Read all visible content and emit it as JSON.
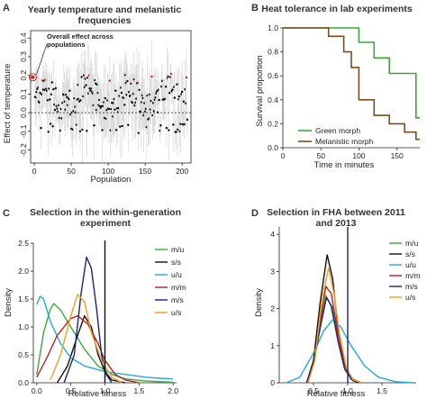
{
  "panels": {
    "A": {
      "label": "A",
      "title": [
        "Yearly temperature and melanistic",
        "frequencies"
      ]
    },
    "B": {
      "label": "B",
      "title": [
        "Heat tolerance in lab experiments"
      ]
    },
    "C": {
      "label": "C",
      "title": [
        "Selection in the within-generation",
        "experiment"
      ]
    },
    "D": {
      "label": "D",
      "title": [
        "Selection in FHA between 2011",
        "and 2013"
      ]
    }
  },
  "annotation": [
    "Overall effect across",
    "populations"
  ],
  "chart_data": [
    {
      "type": "scatter",
      "xlabel": "Population",
      "ylabel": "Effect of temperature",
      "xlim": [
        -5,
        212
      ],
      "ylim": [
        -0.27,
        0.44
      ],
      "xticks": [
        0,
        50,
        100,
        150,
        200
      ],
      "yticks": [
        -0.2,
        -0.1,
        0.0,
        0.1,
        0.2,
        0.3,
        0.4
      ],
      "yticklabels": [
        "-0.2",
        "-0.1",
        "0.0",
        "0.1",
        "0.2",
        "0.3",
        "0.4"
      ],
      "zero_line": 0,
      "overall_effect": {
        "x": -2,
        "y": 0.19
      },
      "colors": {
        "point": "#000000",
        "highlight": "#cc2222",
        "errorbar": "#d6d6d6"
      }
    },
    {
      "type": "line",
      "xlabel": "Time in minutes",
      "ylabel": "Survival proportion",
      "xlim": [
        0,
        180
      ],
      "ylim": [
        0,
        1
      ],
      "xticks": [
        0,
        50,
        100,
        150
      ],
      "yticks": [
        0.0,
        0.2,
        0.4,
        0.6,
        0.8,
        1.0
      ],
      "yticklabels": [
        "0.0",
        "0.2",
        "0.4",
        "0.6",
        "0.8",
        "1.0"
      ],
      "series": [
        {
          "name": "Green morph",
          "color": "#3aa83a",
          "steps": [
            [
              0,
              1.0
            ],
            [
              100,
              1.0
            ],
            [
              100,
              0.88
            ],
            [
              120,
              0.88
            ],
            [
              120,
              0.75
            ],
            [
              140,
              0.75
            ],
            [
              140,
              0.62
            ],
            [
              175,
              0.62
            ],
            [
              175,
              0.25
            ],
            [
              180,
              0.25
            ]
          ]
        },
        {
          "name": "Melanistic morph",
          "color": "#7a4e1a",
          "steps": [
            [
              0,
              1.0
            ],
            [
              60,
              1.0
            ],
            [
              60,
              0.93
            ],
            [
              80,
              0.93
            ],
            [
              80,
              0.8
            ],
            [
              90,
              0.8
            ],
            [
              90,
              0.67
            ],
            [
              100,
              0.67
            ],
            [
              100,
              0.4
            ],
            [
              120,
              0.4
            ],
            [
              120,
              0.27
            ],
            [
              140,
              0.27
            ],
            [
              140,
              0.2
            ],
            [
              160,
              0.2
            ],
            [
              160,
              0.13
            ],
            [
              175,
              0.13
            ],
            [
              175,
              0.07
            ],
            [
              180,
              0.07
            ]
          ]
        }
      ],
      "legend": "bottom-left"
    },
    {
      "type": "line",
      "xlabel": "Relative fitness",
      "ylabel": "Density",
      "xlim": [
        -0.05,
        2.05
      ],
      "ylim": [
        0,
        2.5
      ],
      "xticks": [
        0.0,
        0.5,
        1.0,
        1.5,
        2.0
      ],
      "xticklabels": [
        "0.0",
        "0.5",
        "1.0",
        "1.5",
        "2.0"
      ],
      "yticks": [
        0.0,
        0.5,
        1.0,
        1.5,
        2.0,
        2.5
      ],
      "yticklabels": [
        "0.0",
        "0.5",
        "1.0",
        "1.5",
        "2.0",
        "2.5"
      ],
      "vline": 1.0,
      "series": [
        {
          "name": "m/u",
          "color": "#3aaa3a",
          "points": [
            [
              0.0,
              0.15
            ],
            [
              0.1,
              0.9
            ],
            [
              0.2,
              1.32
            ],
            [
              0.25,
              1.42
            ],
            [
              0.35,
              1.3
            ],
            [
              0.5,
              1.0
            ],
            [
              0.7,
              0.6
            ],
            [
              0.9,
              0.3
            ],
            [
              1.1,
              0.15
            ],
            [
              1.3,
              0.07
            ],
            [
              1.6,
              0.03
            ],
            [
              2.0,
              0.01
            ]
          ]
        },
        {
          "name": "s/s",
          "color": "#111111",
          "points": [
            [
              0.3,
              0.0
            ],
            [
              0.45,
              0.3
            ],
            [
              0.6,
              0.85
            ],
            [
              0.7,
              1.2
            ],
            [
              0.8,
              1.0
            ],
            [
              0.9,
              0.5
            ],
            [
              1.0,
              0.2
            ],
            [
              1.1,
              0.05
            ],
            [
              1.3,
              0.0
            ]
          ]
        },
        {
          "name": "u/u",
          "color": "#22aadd",
          "points": [
            [
              0.0,
              1.4
            ],
            [
              0.05,
              1.55
            ],
            [
              0.1,
              1.5
            ],
            [
              0.2,
              1.1
            ],
            [
              0.35,
              0.7
            ],
            [
              0.5,
              0.45
            ],
            [
              0.7,
              0.3
            ],
            [
              1.0,
              0.2
            ],
            [
              1.3,
              0.15
            ],
            [
              1.6,
              0.1
            ],
            [
              1.8,
              0.08
            ],
            [
              2.0,
              0.07
            ]
          ]
        },
        {
          "name": "m/m",
          "color": "#c02020",
          "points": [
            [
              0.0,
              0.1
            ],
            [
              0.15,
              0.45
            ],
            [
              0.3,
              0.85
            ],
            [
              0.5,
              1.15
            ],
            [
              0.6,
              1.2
            ],
            [
              0.75,
              1.05
            ],
            [
              0.9,
              0.7
            ],
            [
              1.0,
              0.4
            ],
            [
              1.15,
              0.15
            ],
            [
              1.3,
              0.05
            ],
            [
              1.5,
              0.0
            ]
          ]
        },
        {
          "name": "m/s",
          "color": "#1a237e",
          "points": [
            [
              0.4,
              0.0
            ],
            [
              0.55,
              0.5
            ],
            [
              0.65,
              1.6
            ],
            [
              0.73,
              2.25
            ],
            [
              0.8,
              2.05
            ],
            [
              0.88,
              1.3
            ],
            [
              0.95,
              0.5
            ],
            [
              1.02,
              0.15
            ],
            [
              1.1,
              0.0
            ]
          ]
        },
        {
          "name": "u/s",
          "color": "#f0a020",
          "points": [
            [
              0.2,
              0.05
            ],
            [
              0.35,
              0.5
            ],
            [
              0.5,
              1.2
            ],
            [
              0.6,
              1.58
            ],
            [
              0.7,
              1.45
            ],
            [
              0.8,
              0.9
            ],
            [
              0.95,
              0.4
            ],
            [
              1.1,
              0.1
            ],
            [
              1.25,
              0.0
            ]
          ]
        }
      ],
      "legend": "top-right"
    },
    {
      "type": "line",
      "xlabel": "Relative fitness",
      "ylabel": "Density",
      "xlim": [
        0,
        2.0
      ],
      "ylim": [
        0,
        4.2
      ],
      "xticks": [
        0.5,
        1.0,
        1.5
      ],
      "xticklabels": [
        "0.5",
        "1.0",
        "1.5"
      ],
      "yticks": [
        0,
        1,
        2,
        3,
        4
      ],
      "yticklabels": [
        "0",
        "1",
        "2",
        "3",
        "4"
      ],
      "vline": 1.0,
      "series": [
        {
          "name": "m/u",
          "color": "#3aaa3a",
          "points": [
            [
              0.4,
              0.0
            ],
            [
              0.5,
              0.5
            ],
            [
              0.6,
              1.6
            ],
            [
              0.68,
              2.35
            ],
            [
              0.75,
              2.1
            ],
            [
              0.85,
              1.2
            ],
            [
              0.95,
              0.4
            ],
            [
              1.05,
              0.1
            ],
            [
              1.2,
              0.0
            ]
          ]
        },
        {
          "name": "s/s",
          "color": "#111111",
          "points": [
            [
              0.4,
              0.0
            ],
            [
              0.5,
              0.6
            ],
            [
              0.6,
              2.2
            ],
            [
              0.7,
              3.45
            ],
            [
              0.78,
              2.8
            ],
            [
              0.85,
              1.6
            ],
            [
              0.95,
              0.5
            ],
            [
              1.05,
              0.1
            ],
            [
              1.15,
              0.0
            ]
          ]
        },
        {
          "name": "u/u",
          "color": "#22aadd",
          "points": [
            [
              0.1,
              0.0
            ],
            [
              0.3,
              0.15
            ],
            [
              0.5,
              0.8
            ],
            [
              0.65,
              1.4
            ],
            [
              0.78,
              1.7
            ],
            [
              0.9,
              1.5
            ],
            [
              1.05,
              1.0
            ],
            [
              1.25,
              0.45
            ],
            [
              1.45,
              0.15
            ],
            [
              1.7,
              0.03
            ],
            [
              1.95,
              0.0
            ]
          ]
        },
        {
          "name": "m/m",
          "color": "#c02020",
          "points": [
            [
              0.4,
              0.0
            ],
            [
              0.5,
              0.5
            ],
            [
              0.6,
              1.7
            ],
            [
              0.68,
              2.6
            ],
            [
              0.76,
              2.4
            ],
            [
              0.85,
              1.4
            ],
            [
              0.95,
              0.5
            ],
            [
              1.05,
              0.12
            ],
            [
              1.2,
              0.0
            ]
          ]
        },
        {
          "name": "m/s",
          "color": "#1a237e",
          "points": [
            [
              0.4,
              0.0
            ],
            [
              0.5,
              0.5
            ],
            [
              0.6,
              1.5
            ],
            [
              0.69,
              2.3
            ],
            [
              0.77,
              2.05
            ],
            [
              0.86,
              1.1
            ],
            [
              0.96,
              0.35
            ],
            [
              1.08,
              0.05
            ],
            [
              1.2,
              0.0
            ]
          ]
        },
        {
          "name": "u/s",
          "color": "#f0a020",
          "points": [
            [
              0.42,
              0.0
            ],
            [
              0.52,
              0.6
            ],
            [
              0.62,
              2.2
            ],
            [
              0.72,
              3.1
            ],
            [
              0.8,
              2.4
            ],
            [
              0.88,
              1.3
            ],
            [
              0.98,
              0.4
            ],
            [
              1.08,
              0.08
            ],
            [
              1.2,
              0.0
            ]
          ]
        }
      ],
      "legend": "top-right"
    }
  ]
}
